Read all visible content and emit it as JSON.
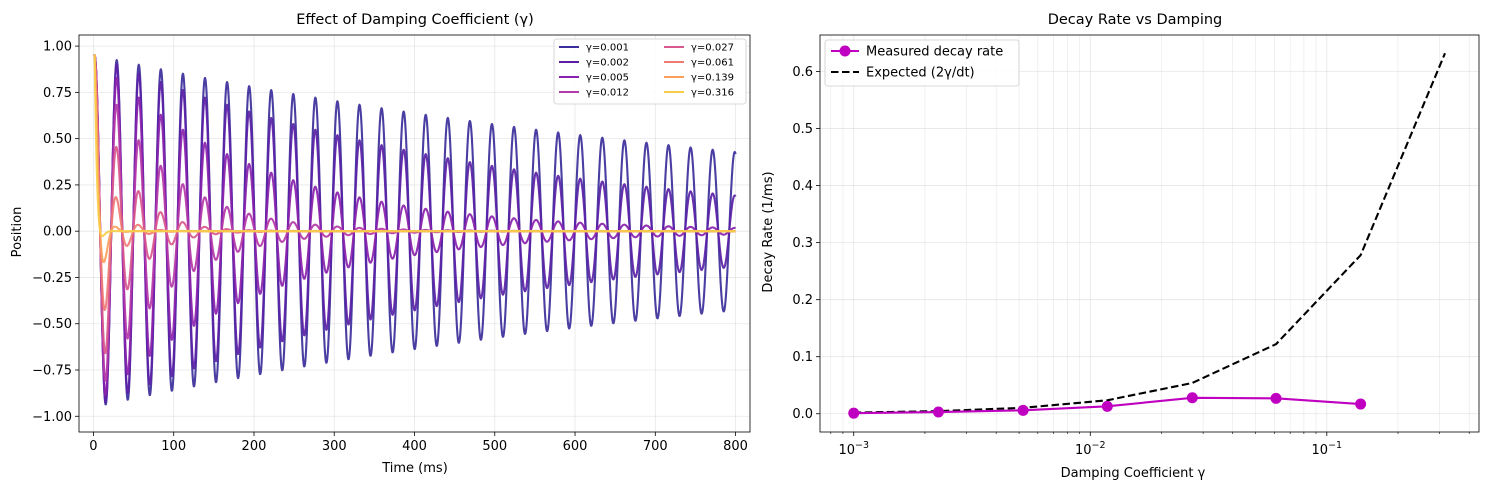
{
  "chart_data": [
    {
      "type": "line",
      "title": "Effect of Damping Coefficient (γ)",
      "xlabel": "Time (ms)",
      "ylabel": "Position",
      "xlim": [
        -18,
        818
      ],
      "ylim": [
        -1.085,
        1.06
      ],
      "xticks": [
        0,
        100,
        200,
        300,
        400,
        500,
        600,
        700,
        800
      ],
      "xtick_labels": [
        "0",
        "100",
        "200",
        "300",
        "400",
        "500",
        "600",
        "700",
        "800"
      ],
      "yticks": [
        -1.0,
        -0.75,
        -0.5,
        -0.25,
        0.0,
        0.25,
        0.5,
        0.75,
        1.0
      ],
      "ytick_labels": [
        "−1.00",
        "−0.75",
        "−0.50",
        "−0.25",
        "0.00",
        "0.25",
        "0.50",
        "0.75",
        "1.00"
      ],
      "grid": true,
      "legend_position": "top-right",
      "legend_columns": 2,
      "series": [
        {
          "name": "γ=0.001",
          "gamma": 0.001,
          "color": "#3b2e9a",
          "initial": 0.95,
          "period_ms": 27.5
        },
        {
          "name": "γ=0.002",
          "gamma": 0.002,
          "color": "#5b1fa6",
          "initial": 0.95,
          "period_ms": 27.5
        },
        {
          "name": "γ=0.005",
          "gamma": 0.005,
          "color": "#8a22ad",
          "initial": 0.95,
          "period_ms": 27.5
        },
        {
          "name": "γ=0.012",
          "gamma": 0.012,
          "color": "#b43aa8",
          "initial": 0.95,
          "period_ms": 27.5
        },
        {
          "name": "γ=0.027",
          "gamma": 0.027,
          "color": "#d8598d",
          "initial": 0.95,
          "period_ms": 27.5
        },
        {
          "name": "γ=0.061",
          "gamma": 0.061,
          "color": "#ef7a73",
          "initial": 0.95,
          "period_ms": 27.5
        },
        {
          "name": "γ=0.139",
          "gamma": 0.139,
          "color": "#fa9f5c",
          "initial": 0.95,
          "period_ms": 27.5
        },
        {
          "name": "γ=0.316",
          "gamma": 0.316,
          "color": "#f8cd4a",
          "initial": 0.95,
          "period_ms": 27.5
        }
      ]
    },
    {
      "type": "line",
      "title": "Decay Rate vs Damping",
      "xlabel": "Damping Coefficient γ",
      "ylabel": "Decay Rate (1/ms)",
      "xscale": "log",
      "xlim": [
        0.00072,
        0.44
      ],
      "ylim": [
        -0.032,
        0.664
      ],
      "xticks": [
        0.001,
        0.01,
        0.1
      ],
      "xtick_labels": [
        {
          "base": "10",
          "exp": "−3"
        },
        {
          "base": "10",
          "exp": "−2"
        },
        {
          "base": "10",
          "exp": "−1"
        }
      ],
      "yticks": [
        0.0,
        0.1,
        0.2,
        0.3,
        0.4,
        0.5,
        0.6
      ],
      "ytick_labels": [
        "0.0",
        "0.1",
        "0.2",
        "0.3",
        "0.4",
        "0.5",
        "0.6"
      ],
      "grid": true,
      "legend_position": "top-left",
      "series": [
        {
          "name": "Measured decay rate",
          "color": "#c000c0",
          "style": "solid-markers",
          "x": [
            0.001,
            0.00228,
            0.0052,
            0.0118,
            0.027,
            0.061,
            0.139
          ],
          "y": [
            0.001,
            0.003,
            0.006,
            0.013,
            0.028,
            0.027,
            0.017
          ]
        },
        {
          "name": "Expected (2γ/dt)",
          "color": "#000000",
          "style": "dashed",
          "x": [
            0.001,
            0.00228,
            0.0052,
            0.0118,
            0.027,
            0.061,
            0.139,
            0.316
          ],
          "y": [
            0.002,
            0.0046,
            0.0104,
            0.0236,
            0.054,
            0.122,
            0.278,
            0.632
          ]
        }
      ]
    }
  ]
}
